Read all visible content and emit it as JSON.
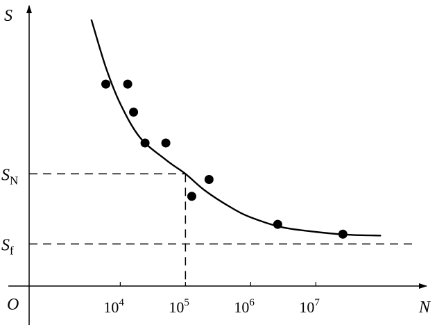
{
  "chart_data": {
    "type": "scatter",
    "xscale": "log",
    "x_ticks": [
      {
        "value": 10000,
        "base": "10",
        "exp": "4"
      },
      {
        "value": 100000,
        "base": "10",
        "exp": "5"
      },
      {
        "value": 1000000,
        "base": "10",
        "exp": "6"
      },
      {
        "value": 10000000,
        "base": "10",
        "exp": "7"
      }
    ],
    "xlabel": "N",
    "ylabel": "S",
    "origin_label": "O",
    "xlim": [
      400,
      500000000
    ],
    "ylim": [
      0,
      100
    ],
    "grid": false,
    "points": [
      {
        "x": 6000,
        "y": 72
      },
      {
        "x": 13000,
        "y": 72
      },
      {
        "x": 16000,
        "y": 62
      },
      {
        "x": 24000,
        "y": 51
      },
      {
        "x": 50000,
        "y": 51
      },
      {
        "x": 125000,
        "y": 32
      },
      {
        "x": 230000,
        "y": 38
      },
      {
        "x": 2600000,
        "y": 22
      },
      {
        "x": 26000000,
        "y": 18.5
      }
    ],
    "curve": [
      {
        "x": 3600,
        "y": 95
      },
      {
        "x": 6000,
        "y": 78
      },
      {
        "x": 10000,
        "y": 65
      },
      {
        "x": 20000,
        "y": 53
      },
      {
        "x": 50000,
        "y": 45
      },
      {
        "x": 100000,
        "y": 40
      },
      {
        "x": 200000,
        "y": 34
      },
      {
        "x": 500000,
        "y": 28
      },
      {
        "x": 1000000,
        "y": 24.5
      },
      {
        "x": 3000000,
        "y": 21
      },
      {
        "x": 10000000,
        "y": 19.3
      },
      {
        "x": 30000000,
        "y": 18.3
      },
      {
        "x": 100000000,
        "y": 18
      }
    ],
    "reference_lines": [
      {
        "label_main": "S",
        "label_sub": "N",
        "y": 40,
        "x_end": 100000,
        "drop_to_axis": true
      },
      {
        "label_main": "S",
        "label_sub": "f",
        "y": 15,
        "x_end": 300000000,
        "drop_to_axis": false
      }
    ]
  }
}
